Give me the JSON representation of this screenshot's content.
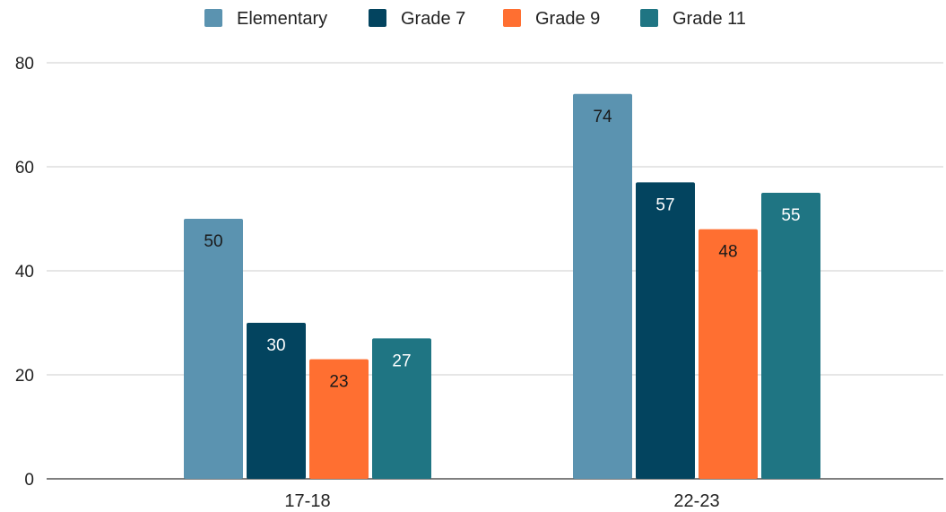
{
  "chart_data": {
    "type": "bar",
    "title": "",
    "xlabel": "",
    "ylabel": "",
    "categories": [
      "17-18",
      "22-23"
    ],
    "series": [
      {
        "name": "Elementary",
        "values": [
          50,
          74
        ],
        "color": "#5b93b0",
        "label_color": "#1a1a1a"
      },
      {
        "name": "Grade 7",
        "values": [
          30,
          57
        ],
        "color": "#03445f",
        "label_color": "#ffffff"
      },
      {
        "name": "Grade 9",
        "values": [
          23,
          48
        ],
        "color": "#ff6f31",
        "label_color": "#1a1a1a"
      },
      {
        "name": "Grade 11",
        "values": [
          27,
          55
        ],
        "color": "#1f7583",
        "label_color": "#ffffff"
      }
    ],
    "ylim": [
      0,
      80
    ],
    "yticks": [
      0,
      20,
      40,
      60,
      80
    ],
    "grid": true,
    "legend_position": "top",
    "data_labels": true
  }
}
